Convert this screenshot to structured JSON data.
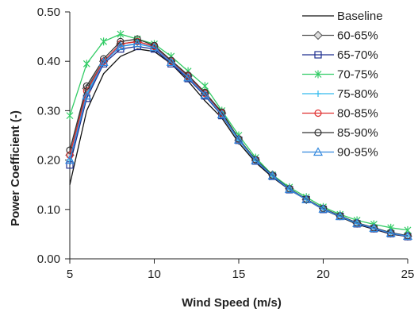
{
  "chart_data": {
    "type": "line",
    "title": "",
    "xlabel": "Wind Speed (m/s)",
    "ylabel": "Power Coefficient (-)",
    "xlim": [
      5,
      25
    ],
    "ylim": [
      0,
      0.5
    ],
    "x_ticks": [
      5,
      10,
      15,
      20,
      25
    ],
    "x_tick_labels": [
      "5",
      "10",
      "15",
      "20",
      "25"
    ],
    "y_ticks": [
      0,
      0.1,
      0.2,
      0.3,
      0.4,
      0.5
    ],
    "y_tick_labels": [
      "0.00",
      "0.10",
      "0.20",
      "0.30",
      "0.40",
      "0.50"
    ],
    "grid": false,
    "legend_position": "right",
    "x": [
      5,
      6,
      7,
      8,
      9,
      10,
      11,
      12,
      13,
      14,
      15,
      16,
      17,
      18,
      19,
      20,
      21,
      22,
      23,
      24,
      25
    ],
    "series": [
      {
        "name": "Baseline",
        "marker": "none",
        "color": "#111111",
        "values": [
          0.15,
          0.3,
          0.375,
          0.41,
          0.425,
          0.42,
          0.395,
          0.36,
          0.32,
          0.285,
          0.235,
          0.195,
          0.165,
          0.14,
          0.12,
          0.1,
          0.085,
          0.07,
          0.06,
          0.05,
          0.045
        ]
      },
      {
        "name": "60-65%",
        "marker": "diamond",
        "color": "#555555",
        "values": [
          0.21,
          0.345,
          0.4,
          0.435,
          0.44,
          0.43,
          0.4,
          0.37,
          0.335,
          0.295,
          0.24,
          0.2,
          0.17,
          0.142,
          0.12,
          0.102,
          0.087,
          0.072,
          0.062,
          0.052,
          0.046
        ]
      },
      {
        "name": "65-70%",
        "marker": "square",
        "color": "#1f2f8f",
        "values": [
          0.19,
          0.325,
          0.395,
          0.425,
          0.43,
          0.425,
          0.395,
          0.365,
          0.33,
          0.29,
          0.24,
          0.198,
          0.167,
          0.14,
          0.12,
          0.1,
          0.086,
          0.071,
          0.061,
          0.051,
          0.045
        ]
      },
      {
        "name": "70-75%",
        "marker": "asterisk",
        "color": "#33cc66",
        "values": [
          0.29,
          0.395,
          0.44,
          0.455,
          0.445,
          0.435,
          0.41,
          0.38,
          0.35,
          0.3,
          0.25,
          0.205,
          0.17,
          0.145,
          0.125,
          0.105,
          0.09,
          0.078,
          0.07,
          0.063,
          0.058
        ]
      },
      {
        "name": "75-80%",
        "marker": "plus",
        "color": "#33bbee",
        "values": [
          0.2,
          0.335,
          0.4,
          0.43,
          0.435,
          0.428,
          0.4,
          0.368,
          0.332,
          0.292,
          0.24,
          0.199,
          0.168,
          0.141,
          0.12,
          0.101,
          0.086,
          0.072,
          0.062,
          0.052,
          0.046
        ]
      },
      {
        "name": "80-85%",
        "marker": "circle",
        "color": "#e03030",
        "values": [
          0.21,
          0.34,
          0.4,
          0.435,
          0.44,
          0.43,
          0.4,
          0.37,
          0.335,
          0.295,
          0.242,
          0.2,
          0.168,
          0.142,
          0.12,
          0.102,
          0.087,
          0.072,
          0.062,
          0.052,
          0.046
        ]
      },
      {
        "name": "85-90%",
        "marker": "circle",
        "color": "#333333",
        "values": [
          0.22,
          0.35,
          0.405,
          0.44,
          0.445,
          0.432,
          0.402,
          0.372,
          0.337,
          0.297,
          0.243,
          0.201,
          0.169,
          0.142,
          0.121,
          0.102,
          0.087,
          0.073,
          0.063,
          0.053,
          0.047
        ]
      },
      {
        "name": "90-95%",
        "marker": "triangle",
        "color": "#3388dd",
        "values": [
          0.2,
          0.33,
          0.398,
          0.43,
          0.436,
          0.428,
          0.398,
          0.367,
          0.332,
          0.292,
          0.241,
          0.199,
          0.168,
          0.141,
          0.12,
          0.101,
          0.086,
          0.072,
          0.062,
          0.052,
          0.046
        ]
      }
    ]
  }
}
